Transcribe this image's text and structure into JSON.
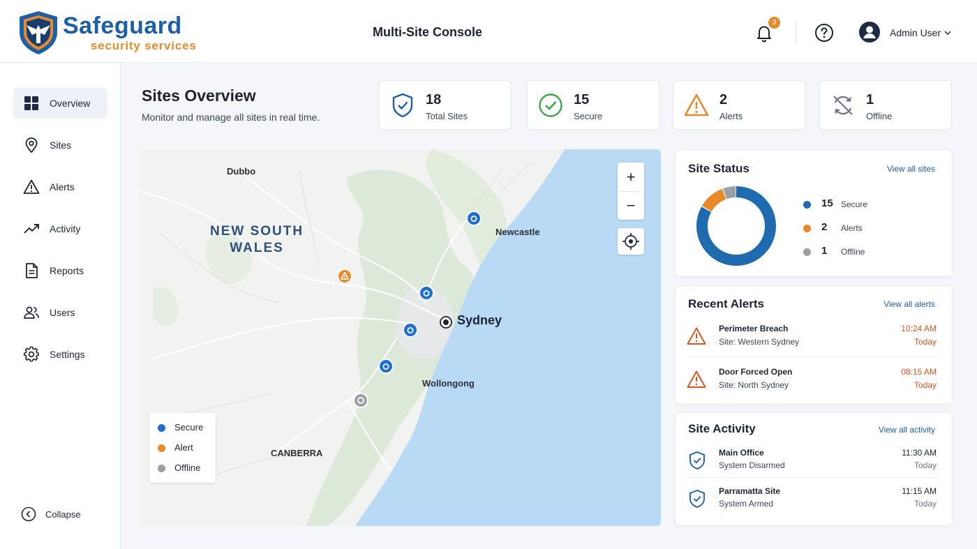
{
  "brand": {
    "name": "Safeguard",
    "tagline": "security services"
  },
  "header": {
    "title": "Multi-Site Console",
    "notification_count": "3",
    "user_name": "Admin User"
  },
  "sidebar": {
    "items": [
      {
        "label": "Overview",
        "icon": "grid-icon",
        "active": true
      },
      {
        "label": "Sites",
        "icon": "map-pin-icon"
      },
      {
        "label": "Alerts",
        "icon": "warning-icon"
      },
      {
        "label": "Activity",
        "icon": "trend-icon"
      },
      {
        "label": "Reports",
        "icon": "document-icon"
      },
      {
        "label": "Users",
        "icon": "users-icon"
      },
      {
        "label": "Settings",
        "icon": "gear-icon"
      }
    ],
    "collapse_label": "Collapse"
  },
  "page": {
    "title": "Sites Overview",
    "subtitle": "Monitor and manage all sites in real time."
  },
  "stats": [
    {
      "value": "18",
      "label": "Total Sites",
      "icon": "shield-check-icon",
      "color": "#1d5fa6"
    },
    {
      "value": "15",
      "label": "Secure",
      "icon": "check-circle-icon",
      "color": "#3aa54a"
    },
    {
      "value": "2",
      "label": "Alerts",
      "icon": "warning-icon",
      "color": "#e8892b"
    },
    {
      "value": "1",
      "label": "Offline",
      "icon": "offline-sync-icon",
      "color": "#6b7585"
    }
  ],
  "map": {
    "places": {
      "dubbo": "Dubbo",
      "region": "NEW SOUTH\nWALES",
      "newcastle": "Newcastle",
      "sydney": "Sydney",
      "wollongong": "Wollongong",
      "canberra": "CANBERRA"
    },
    "zoom_in": "+",
    "zoom_out": "−",
    "legend": [
      {
        "label": "Secure",
        "color": "#1d6fd1"
      },
      {
        "label": "Alert",
        "color": "#e8892b"
      },
      {
        "label": "Offline",
        "color": "#9aa0a6"
      }
    ]
  },
  "site_status": {
    "title": "Site Status",
    "link": "View all sites",
    "chart_data": {
      "type": "pie",
      "categories": [
        "Secure",
        "Alerts",
        "Offline"
      ],
      "values": [
        15,
        2,
        1
      ],
      "colors": [
        "#1f6bb0",
        "#e8892b",
        "#9aa0a6"
      ]
    },
    "rows": [
      {
        "value": "15",
        "label": "Secure",
        "color": "#1f6bb0"
      },
      {
        "value": "2",
        "label": "Alerts",
        "color": "#e8892b"
      },
      {
        "value": "1",
        "label": "Offline",
        "color": "#9aa0a6"
      }
    ]
  },
  "recent_alerts": {
    "title": "Recent Alerts",
    "link": "View all alerts",
    "items": [
      {
        "title": "Perimeter Breach",
        "site": "Site: Western Sydney",
        "time": "10:24 AM",
        "day": "Today"
      },
      {
        "title": "Door Forced Open",
        "site": "Site: North Sydney",
        "time": "08:15 AM",
        "day": "Today"
      }
    ]
  },
  "site_activity": {
    "title": "Site Activity",
    "link": "View all activity",
    "items": [
      {
        "title": "Main Office",
        "status": "System Disarmed",
        "time": "11:30 AM",
        "day": "Today"
      },
      {
        "title": "Parramatta Site",
        "status": "System Armed",
        "time": "11:15 AM",
        "day": "Today"
      }
    ]
  }
}
